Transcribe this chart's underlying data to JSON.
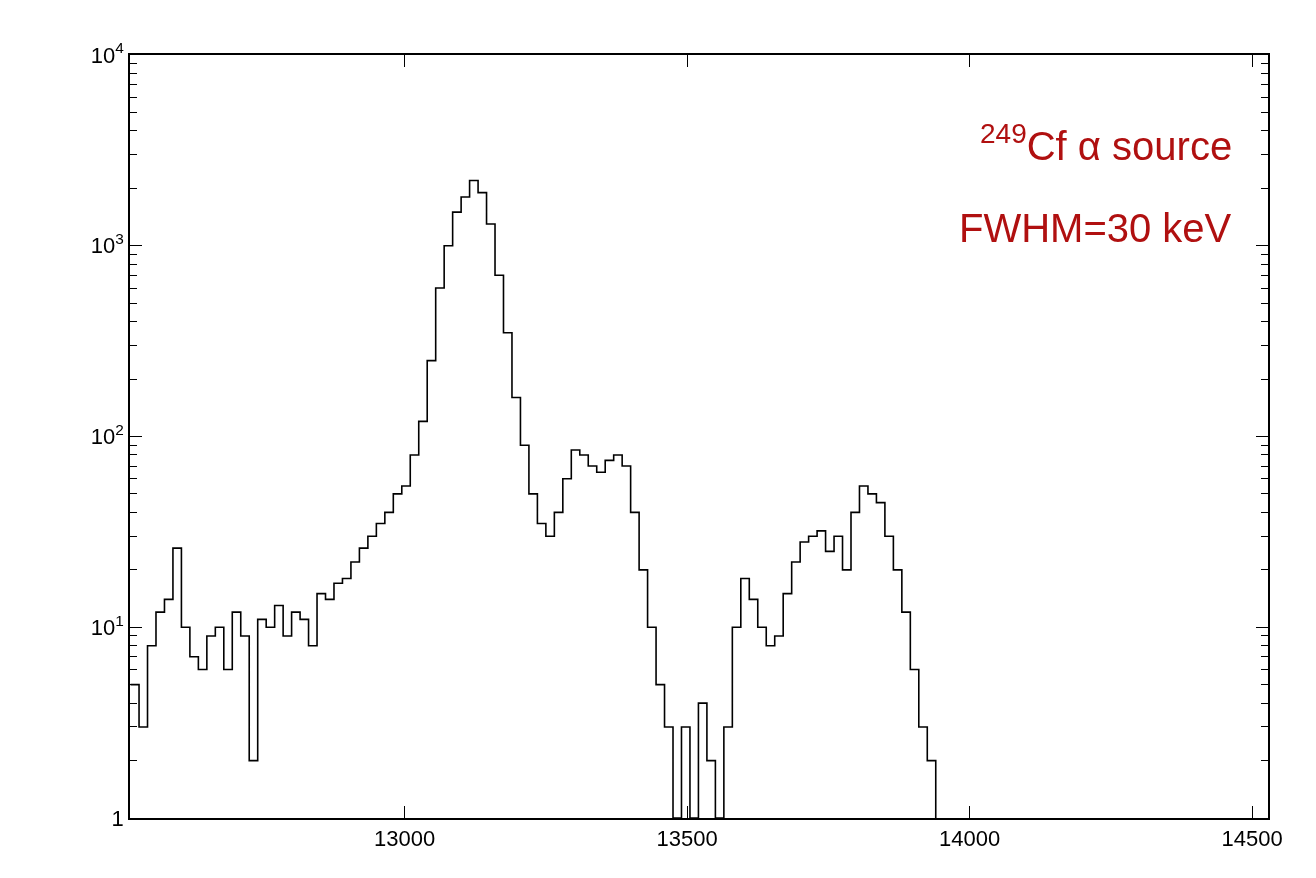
{
  "chart_data": {
    "type": "step",
    "x": [
      12515,
      12530,
      12545,
      12560,
      12575,
      12590,
      12605,
      12620,
      12635,
      12650,
      12665,
      12680,
      12695,
      12710,
      12725,
      12740,
      12755,
      12770,
      12785,
      12800,
      12815,
      12830,
      12845,
      12860,
      12875,
      12890,
      12905,
      12920,
      12935,
      12950,
      12965,
      12980,
      12995,
      13010,
      13025,
      13040,
      13055,
      13070,
      13085,
      13100,
      13115,
      13130,
      13145,
      13160,
      13175,
      13190,
      13205,
      13220,
      13235,
      13250,
      13265,
      13280,
      13295,
      13310,
      13325,
      13340,
      13355,
      13370,
      13385,
      13400,
      13415,
      13430,
      13445,
      13460,
      13475,
      13490,
      13505,
      13520,
      13535,
      13550,
      13565,
      13580,
      13595,
      13610,
      13625,
      13640,
      13655,
      13670,
      13685,
      13700,
      13715,
      13730,
      13745,
      13760,
      13775,
      13790,
      13805,
      13820,
      13835,
      13850,
      13865,
      13880,
      13895,
      13910,
      13925,
      13940
    ],
    "values": [
      5,
      3,
      8,
      12,
      14,
      26,
      10,
      7,
      6,
      9,
      10,
      6,
      12,
      9,
      2,
      11,
      10,
      13,
      9,
      12,
      11,
      8,
      15,
      14,
      17,
      18,
      22,
      26,
      30,
      35,
      40,
      50,
      55,
      80,
      120,
      250,
      600,
      1000,
      1500,
      1800,
      2200,
      1900,
      1300,
      700,
      350,
      160,
      90,
      50,
      35,
      30,
      40,
      60,
      85,
      80,
      70,
      65,
      75,
      80,
      70,
      40,
      20,
      10,
      5,
      3,
      1,
      3,
      1,
      4,
      2,
      1,
      3,
      10,
      18,
      14,
      10,
      8,
      9,
      15,
      22,
      28,
      30,
      32,
      25,
      30,
      20,
      40,
      55,
      50,
      45,
      30,
      20,
      12,
      6,
      3,
      2,
      1
    ],
    "color": "#000000",
    "log": "y",
    "xlim": [
      12514,
      14528
    ],
    "ylim": [
      1,
      10000
    ],
    "xticks": [
      13000,
      13500,
      14000,
      14500
    ],
    "yticks": [
      {
        "value": 1,
        "label": "1"
      },
      {
        "value": 10,
        "label": "10$^{1}$"
      },
      {
        "value": 100,
        "label": "10$^{2}$"
      },
      {
        "value": 1000,
        "label": "10$^{3}$"
      },
      {
        "value": 10000,
        "label": "10$^{4}$"
      }
    ],
    "legend": false,
    "annotations": [
      "$^{249}$Cf α source",
      "FWHM=30 keV"
    ]
  }
}
